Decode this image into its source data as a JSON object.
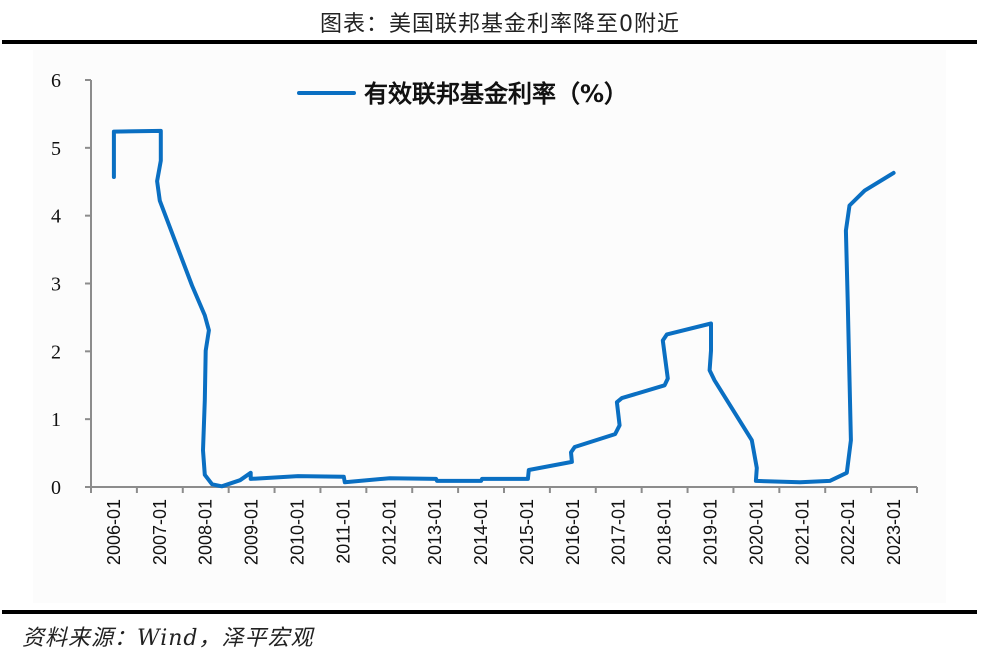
{
  "header": {
    "title": "图表：美国联邦基金利率降至0附近"
  },
  "footer": {
    "source": "资料来源：Wind，泽平宏观"
  },
  "colors": {
    "series": "#0a6fc2",
    "axis": "#8c8c8c",
    "panel": "#fcfcfc"
  },
  "chart_data": {
    "type": "line",
    "title": "美国联邦基金利率降至0附近",
    "xlabel": "",
    "ylabel": "",
    "ylim": [
      0,
      6
    ],
    "yticks": [
      0,
      1,
      2,
      3,
      4,
      5,
      6
    ],
    "categories": [
      "2006-01",
      "2007-01",
      "2008-01",
      "2009-01",
      "2010-01",
      "2011-01",
      "2012-01",
      "2013-01",
      "2014-01",
      "2015-01",
      "2016-01",
      "2017-01",
      "2018-01",
      "2019-01",
      "2020-01",
      "2021-01",
      "2022-01",
      "2023-01"
    ],
    "legend": {
      "position": "top-center",
      "entries": [
        "有效联邦基金利率（%）"
      ]
    },
    "grid": false,
    "series": [
      {
        "name": "有效联邦基金利率（%）",
        "note": "x = years since 2006-01, y = rate (%)",
        "points": [
          [
            0.0,
            4.57
          ],
          [
            0.0,
            5.24
          ],
          [
            1.02,
            5.25
          ],
          [
            1.02,
            4.81
          ],
          [
            0.94,
            4.51
          ],
          [
            1.0,
            4.22
          ],
          [
            1.33,
            3.63
          ],
          [
            1.7,
            2.97
          ],
          [
            1.98,
            2.53
          ],
          [
            2.07,
            2.31
          ],
          [
            2.0,
            2.01
          ],
          [
            1.98,
            1.28
          ],
          [
            1.94,
            0.54
          ],
          [
            1.98,
            0.18
          ],
          [
            2.14,
            0.04
          ],
          [
            2.35,
            0.01
          ],
          [
            2.75,
            0.1
          ],
          [
            2.98,
            0.21
          ],
          [
            2.98,
            0.12
          ],
          [
            4.01,
            0.16
          ],
          [
            5.01,
            0.15
          ],
          [
            5.03,
            0.07
          ],
          [
            6.01,
            0.13
          ],
          [
            7.02,
            0.12
          ],
          [
            7.04,
            0.09
          ],
          [
            8.0,
            0.09
          ],
          [
            8.02,
            0.12
          ],
          [
            9.02,
            0.12
          ],
          [
            9.04,
            0.25
          ],
          [
            9.98,
            0.37
          ],
          [
            9.96,
            0.51
          ],
          [
            10.04,
            0.59
          ],
          [
            10.92,
            0.78
          ],
          [
            11.02,
            0.91
          ],
          [
            10.96,
            1.25
          ],
          [
            11.07,
            1.31
          ],
          [
            12.0,
            1.5
          ],
          [
            12.07,
            1.6
          ],
          [
            11.96,
            2.16
          ],
          [
            12.05,
            2.25
          ],
          [
            13.01,
            2.41
          ],
          [
            13.01,
            2.01
          ],
          [
            12.98,
            1.72
          ],
          [
            13.09,
            1.57
          ],
          [
            13.9,
            0.69
          ],
          [
            14.01,
            0.28
          ],
          [
            13.99,
            0.09
          ],
          [
            14.95,
            0.07
          ],
          [
            15.6,
            0.09
          ],
          [
            15.97,
            0.21
          ],
          [
            16.06,
            0.69
          ],
          [
            15.99,
            2.75
          ],
          [
            15.95,
            3.78
          ],
          [
            16.03,
            4.15
          ],
          [
            16.36,
            4.37
          ],
          [
            16.99,
            4.63
          ]
        ]
      }
    ]
  }
}
